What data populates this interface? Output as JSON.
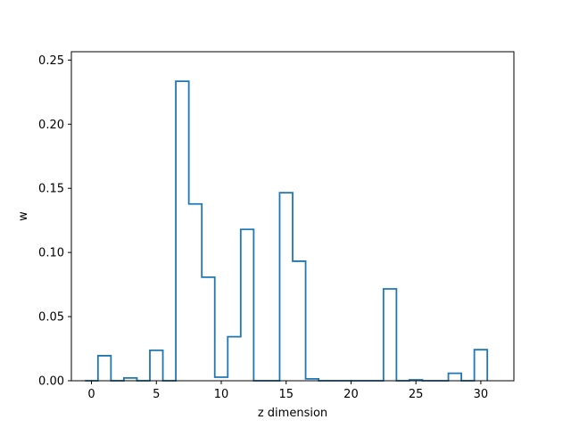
{
  "chart_data": {
    "type": "bar",
    "style": "step-outline",
    "xlabel": "z dimension",
    "ylabel": "w",
    "xlim": [
      -1.55,
      32.55
    ],
    "ylim": [
      0,
      0.2565
    ],
    "xticks": [
      0,
      5,
      10,
      15,
      20,
      25,
      30
    ],
    "yticks": [
      0.0,
      0.05,
      0.1,
      0.15,
      0.2,
      0.25
    ],
    "ytick_labels": [
      "0.00",
      "0.05",
      "0.10",
      "0.15",
      "0.20",
      "0.25"
    ],
    "grid": false,
    "color": "#1f77b4",
    "x": [
      0,
      1,
      2,
      3,
      4,
      5,
      6,
      7,
      8,
      9,
      10,
      11,
      12,
      13,
      14,
      15,
      16,
      17,
      18,
      19,
      20,
      21,
      22,
      23,
      24,
      25,
      26,
      27,
      28,
      29,
      30
    ],
    "values": [
      0.0,
      0.0195,
      0.0,
      0.0022,
      0.0,
      0.0237,
      0.0,
      0.2335,
      0.1378,
      0.0807,
      0.0028,
      0.0343,
      0.118,
      0.0,
      0.0,
      0.1466,
      0.0932,
      0.0015,
      0.0,
      0.0,
      0.0,
      0.0,
      0.0,
      0.0716,
      0.0,
      0.0007,
      0.0,
      0.0,
      0.0058,
      0.0,
      0.0242
    ]
  }
}
